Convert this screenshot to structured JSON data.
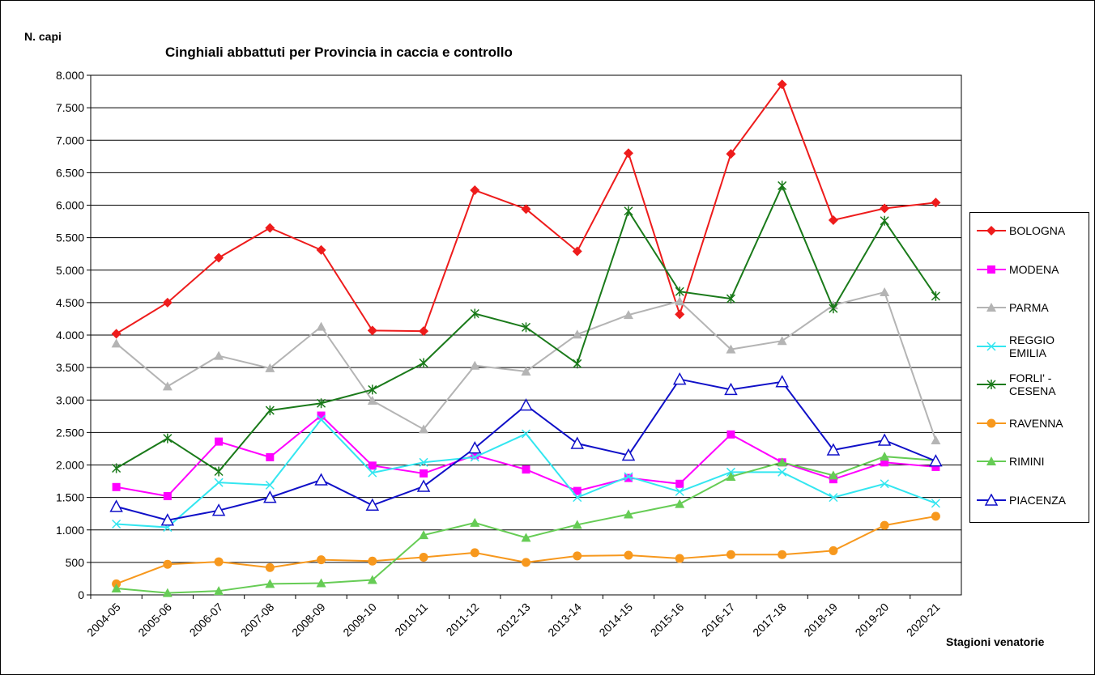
{
  "chart_data": {
    "type": "line",
    "title": "Cinghiali abbattuti per Provincia in caccia e controllo",
    "y_label": "N. capi",
    "x_label": "Stagioni venatorie",
    "categories": [
      "2004-05",
      "2005-06",
      "2006-07",
      "2007-08",
      "2008-09",
      "2009-10",
      "2010-11",
      "2011-12",
      "2012-13",
      "2013-14",
      "2014-15",
      "2015-16",
      "2016-17",
      "2017-18",
      "2018-19",
      "2019-20",
      "2020-21"
    ],
    "ylim": [
      0,
      8000
    ],
    "yticks": [
      {
        "value": 0,
        "label": "0"
      },
      {
        "value": 500,
        "label": "500"
      },
      {
        "value": 1000,
        "label": "1.000"
      },
      {
        "value": 1500,
        "label": "1.500"
      },
      {
        "value": 2000,
        "label": "2.000"
      },
      {
        "value": 2500,
        "label": "2.500"
      },
      {
        "value": 3000,
        "label": "3.000"
      },
      {
        "value": 3500,
        "label": "3.500"
      },
      {
        "value": 4000,
        "label": "4.000"
      },
      {
        "value": 4500,
        "label": "4.500"
      },
      {
        "value": 5000,
        "label": "5.000"
      },
      {
        "value": 5500,
        "label": "5.500"
      },
      {
        "value": 6000,
        "label": "6.000"
      },
      {
        "value": 6500,
        "label": "6.500"
      },
      {
        "value": 7000,
        "label": "7.000"
      },
      {
        "value": 7500,
        "label": "7.500"
      },
      {
        "value": 8000,
        "label": "8.000"
      }
    ],
    "grid": true,
    "legend": "right",
    "series": [
      {
        "name": "BOLOGNA",
        "color": "#ee1c1c",
        "marker": "diamond",
        "values": [
          4020,
          4500,
          5190,
          5650,
          5310,
          4070,
          4060,
          6230,
          5940,
          5290,
          6800,
          4320,
          6790,
          7860,
          5770,
          5950,
          6040
        ]
      },
      {
        "name": "MODENA",
        "color": "#ff00ff",
        "marker": "square",
        "values": [
          1660,
          1520,
          2360,
          2120,
          2760,
          1990,
          1870,
          2150,
          1930,
          1600,
          1800,
          1710,
          2470,
          2040,
          1780,
          2040,
          1970
        ]
      },
      {
        "name": "PARMA",
        "color": "#b4b4b4",
        "marker": "triangle",
        "values": [
          3870,
          3210,
          3680,
          3490,
          4130,
          2990,
          2550,
          3530,
          3440,
          4010,
          4310,
          4520,
          3780,
          3910,
          4460,
          4660,
          2380
        ]
      },
      {
        "name": "REGGIO EMILIA",
        "color": "#33e6f0",
        "marker": "x",
        "values": [
          1090,
          1040,
          1730,
          1690,
          2700,
          1880,
          2040,
          2120,
          2480,
          1500,
          1820,
          1590,
          1890,
          1890,
          1500,
          1710,
          1410
        ]
      },
      {
        "name": "FORLI' - CESENA",
        "color": "#1a7a1a",
        "marker": "star",
        "values": [
          1950,
          2410,
          1900,
          2840,
          2950,
          3160,
          3570,
          4330,
          4120,
          3560,
          5910,
          4670,
          4560,
          6300,
          4410,
          5760,
          4600
        ]
      },
      {
        "name": "RAVENNA",
        "color": "#f7981d",
        "marker": "circle",
        "values": [
          170,
          470,
          510,
          420,
          540,
          520,
          580,
          650,
          500,
          600,
          610,
          560,
          620,
          620,
          680,
          1070,
          1210
        ]
      },
      {
        "name": "RIMINI",
        "color": "#66cc55",
        "marker": "triangle",
        "values": [
          100,
          30,
          60,
          170,
          180,
          230,
          920,
          1110,
          880,
          1080,
          1240,
          1400,
          1820,
          2040,
          1840,
          2130,
          2070
        ]
      },
      {
        "name": "PIACENZA",
        "color": "#1010c8",
        "marker": "triangle-open",
        "values": [
          1360,
          1150,
          1300,
          1500,
          1770,
          1380,
          1670,
          2260,
          2920,
          2330,
          2150,
          3320,
          3160,
          3280,
          2230,
          2380,
          2060
        ]
      }
    ]
  }
}
